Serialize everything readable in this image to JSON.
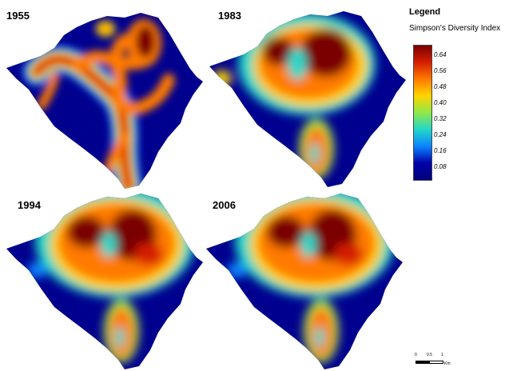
{
  "maps": [
    {
      "year": "1955"
    },
    {
      "year": "1983"
    },
    {
      "year": "1994"
    },
    {
      "year": "2006"
    }
  ],
  "legend": {
    "title": "Legend",
    "subtitle": "Simpson's Diversity Index",
    "ticks": [
      "0.64",
      "0.56",
      "0.48",
      "0.40",
      "0.32",
      "0.24",
      "0.16",
      "0.08"
    ],
    "colors": [
      "#7a0000",
      "#d41e00",
      "#ff7a00",
      "#ffd500",
      "#8fe84a",
      "#22d7c8",
      "#0a84ff",
      "#0000a8",
      "#00007a"
    ]
  },
  "scale_bar": {
    "labels": [
      "0",
      "0.5",
      "1"
    ],
    "unit": "Km"
  }
}
